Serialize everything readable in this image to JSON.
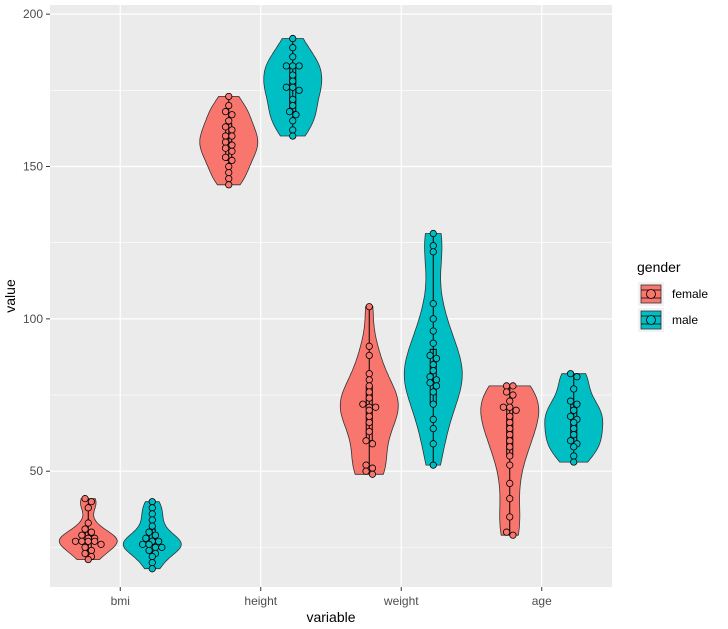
{
  "chart_data": {
    "type": "violin",
    "xlabel": "variable",
    "ylabel": "value",
    "categories": [
      "bmi",
      "height",
      "weight",
      "age"
    ],
    "y_ticks": [
      50,
      100,
      150,
      200
    ],
    "y_tick_labels": [
      "50",
      "100",
      "150",
      "200"
    ],
    "ylim": [
      12,
      203
    ],
    "panel_background": "#ebebeb",
    "grid": true,
    "legend": {
      "title": "gender",
      "placement": "right",
      "entries": [
        {
          "name": "female",
          "color": "#F8766D"
        },
        {
          "name": "male",
          "color": "#00BFC4"
        }
      ]
    },
    "series": [
      {
        "name": "female",
        "color": "#F8766D",
        "groups": [
          {
            "category": "bmi",
            "min": 21,
            "max": 41,
            "q1": 24,
            "median": 27,
            "q3": 30,
            "points": [
              41,
              40,
              38,
              33,
              31,
              30,
              29,
              28,
              28,
              27,
              27,
              27,
              27,
              26,
              25,
              24,
              23,
              22,
              21
            ]
          },
          {
            "category": "height",
            "min": 144,
            "max": 173,
            "q1": 152,
            "median": 158,
            "q3": 164,
            "points": [
              173,
              170,
              168,
              167,
              165,
              163,
              162,
              160,
              160,
              158,
              157,
              156,
              155,
              153,
              152,
              150,
              148,
              146,
              144
            ]
          },
          {
            "category": "weight",
            "min": 49,
            "max": 104,
            "q1": 60,
            "median": 71,
            "q3": 78,
            "points": [
              104,
              91,
              88,
              82,
              80,
              78,
              76,
              74,
              72,
              71,
              71,
              70,
              68,
              66,
              63,
              60,
              59,
              52,
              51,
              50,
              49
            ]
          },
          {
            "category": "age",
            "min": 29,
            "max": 78,
            "q1": 55,
            "median": 64,
            "q3": 71,
            "points": [
              78,
              78,
              76,
              75,
              73,
              71,
              71,
              70,
              68,
              66,
              64,
              62,
              60,
              58,
              55,
              52,
              46,
              41,
              35,
              30,
              29
            ]
          }
        ]
      },
      {
        "name": "male",
        "color": "#00BFC4",
        "groups": [
          {
            "category": "bmi",
            "min": 18,
            "max": 40,
            "q1": 23,
            "median": 26,
            "q3": 31,
            "points": [
              40,
              38,
              36,
              34,
              32,
              30,
              29,
              28,
              27,
              27,
              26,
              26,
              25,
              25,
              24,
              23,
              22,
              20,
              18
            ]
          },
          {
            "category": "height",
            "min": 160,
            "max": 192,
            "q1": 168,
            "median": 176,
            "q3": 183,
            "points": [
              192,
              189,
              186,
              183,
              183,
              183,
              180,
              178,
              176,
              176,
              175,
              172,
              170,
              168,
              167,
              165,
              162,
              160
            ]
          },
          {
            "category": "weight",
            "min": 52,
            "max": 128,
            "q1": 72,
            "median": 80,
            "q3": 90,
            "points": [
              128,
              124,
              122,
              105,
              100,
              96,
              92,
              88,
              87,
              85,
              83,
              81,
              80,
              79,
              78,
              76,
              72,
              67,
              64,
              59,
              52
            ]
          },
          {
            "category": "age",
            "min": 53,
            "max": 82,
            "q1": 59,
            "median": 66,
            "q3": 72,
            "points": [
              82,
              81,
              77,
              73,
              72,
              70,
              68,
              67,
              66,
              64,
              62,
              60,
              59,
              58,
              55,
              53
            ]
          }
        ]
      }
    ]
  }
}
